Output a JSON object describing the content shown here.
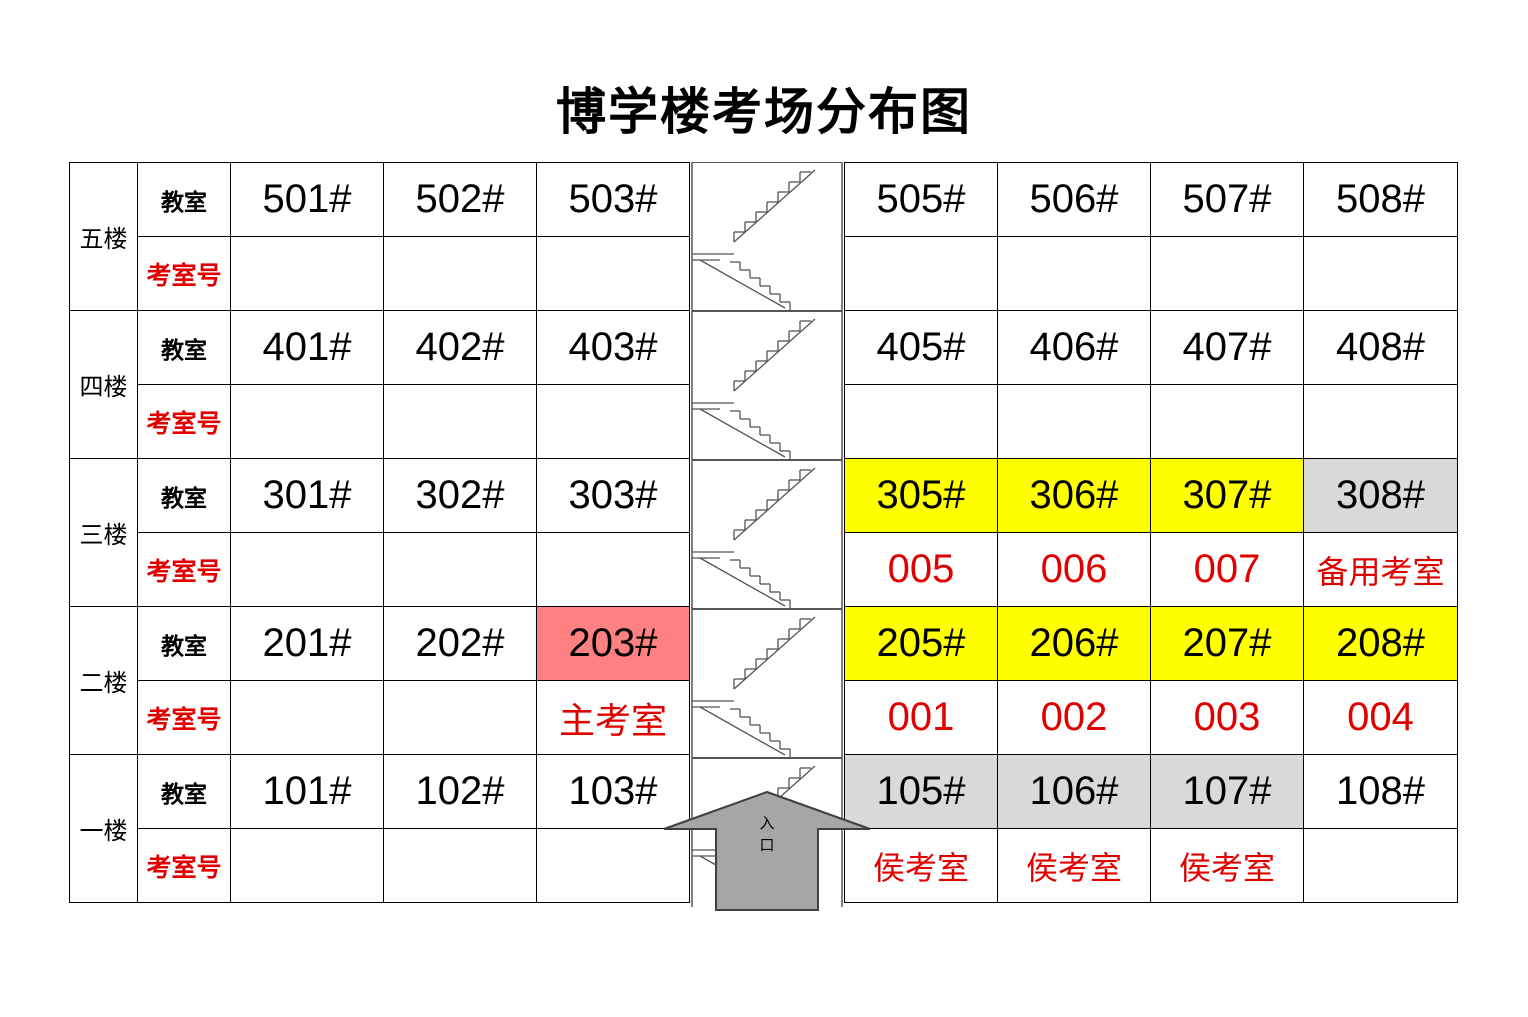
{
  "title": "博学楼考场分布图",
  "labels": {
    "room": "教室",
    "exam_no": "考室号"
  },
  "entrance": [
    "入",
    "口"
  ],
  "colors": {
    "highlight_yellow": "#ffff00",
    "standby_gray": "#d9d9d9",
    "main_red": "#ff8080",
    "text_red": "#e00000"
  },
  "floors": [
    {
      "name": "五楼",
      "left": [
        {
          "room": "501#",
          "value": ""
        },
        {
          "room": "502#",
          "value": ""
        },
        {
          "room": "503#",
          "value": ""
        }
      ],
      "right": [
        {
          "room": "505#",
          "value": ""
        },
        {
          "room": "506#",
          "value": ""
        },
        {
          "room": "507#",
          "value": ""
        },
        {
          "room": "508#",
          "value": ""
        }
      ]
    },
    {
      "name": "四楼",
      "left": [
        {
          "room": "401#",
          "value": ""
        },
        {
          "room": "402#",
          "value": ""
        },
        {
          "room": "403#",
          "value": ""
        }
      ],
      "right": [
        {
          "room": "405#",
          "value": ""
        },
        {
          "room": "406#",
          "value": ""
        },
        {
          "room": "407#",
          "value": ""
        },
        {
          "room": "408#",
          "value": ""
        }
      ]
    },
    {
      "name": "三楼",
      "left": [
        {
          "room": "301#",
          "value": ""
        },
        {
          "room": "302#",
          "value": ""
        },
        {
          "room": "303#",
          "value": ""
        }
      ],
      "right": [
        {
          "room": "305#",
          "value": "005",
          "fill": "yellow"
        },
        {
          "room": "306#",
          "value": "006",
          "fill": "yellow"
        },
        {
          "room": "307#",
          "value": "007",
          "fill": "yellow"
        },
        {
          "room": "308#",
          "value": "备用考室",
          "fill": "gray"
        }
      ]
    },
    {
      "name": "二楼",
      "left": [
        {
          "room": "201#",
          "value": ""
        },
        {
          "room": "202#",
          "value": ""
        },
        {
          "room": "203#",
          "value": "主考室",
          "fill": "red"
        }
      ],
      "right": [
        {
          "room": "205#",
          "value": "001",
          "fill": "yellow"
        },
        {
          "room": "206#",
          "value": "002",
          "fill": "yellow"
        },
        {
          "room": "207#",
          "value": "003",
          "fill": "yellow"
        },
        {
          "room": "208#",
          "value": "004",
          "fill": "yellow"
        }
      ]
    },
    {
      "name": "一楼",
      "left": [
        {
          "room": "101#",
          "value": ""
        },
        {
          "room": "102#",
          "value": ""
        },
        {
          "room": "103#",
          "value": ""
        }
      ],
      "right": [
        {
          "room": "105#",
          "value": "侯考室",
          "fill": "gray"
        },
        {
          "room": "106#",
          "value": "侯考室",
          "fill": "gray"
        },
        {
          "room": "107#",
          "value": "侯考室",
          "fill": "gray"
        },
        {
          "room": "108#",
          "value": ""
        }
      ]
    }
  ]
}
